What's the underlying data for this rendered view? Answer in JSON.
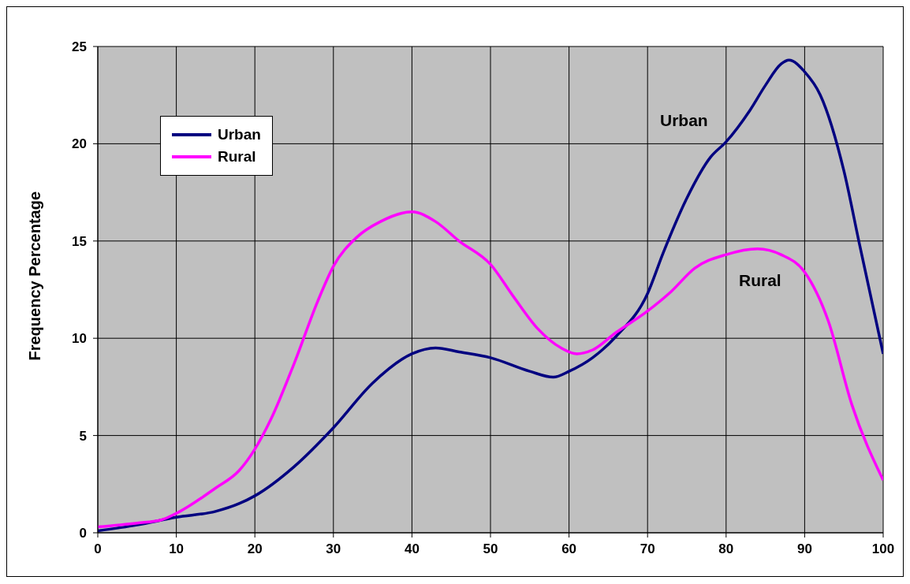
{
  "chart_data": {
    "type": "line",
    "ylabel": "Frequency Percentage",
    "xlim": [
      0,
      100
    ],
    "xticks": [
      0,
      10,
      20,
      30,
      40,
      50,
      60,
      70,
      80,
      90,
      100
    ],
    "ylim": [
      0,
      25
    ],
    "yticks": [
      0,
      5,
      10,
      15,
      20,
      25
    ],
    "grid": true,
    "legend": "top left",
    "marker": "none",
    "line_style": "solid",
    "series": [
      {
        "name": "Urban",
        "color": "#000080",
        "x": [
          0,
          5,
          10,
          15,
          18,
          20,
          25,
          30,
          35,
          40,
          43,
          46,
          50,
          55,
          58,
          60,
          63,
          66,
          70,
          72,
          75,
          78,
          80,
          83,
          85,
          87,
          88,
          90,
          92,
          95,
          97,
          100
        ],
        "values": [
          0.1,
          0.4,
          0.8,
          1.1,
          1.5,
          1.9,
          3.4,
          5.4,
          7.7,
          9.2,
          9.5,
          9.3,
          9.0,
          8.3,
          8.0,
          8.3,
          9.0,
          10.1,
          12.3,
          14.4,
          17.2,
          19.3,
          20.1,
          21.7,
          23.0,
          24.1,
          24.3,
          23.7,
          22.5,
          18.6,
          14.8,
          9.2
        ]
      },
      {
        "name": "Rural",
        "color": "#ff00ff",
        "x": [
          0,
          5,
          8,
          10,
          15,
          18,
          20,
          22,
          25,
          28,
          30,
          33,
          36,
          40,
          43,
          46,
          50,
          53,
          56,
          59,
          61,
          63,
          66,
          70,
          73,
          76,
          80,
          84,
          87,
          90,
          93,
          96,
          100
        ],
        "values": [
          0.3,
          0.5,
          0.65,
          1.0,
          2.3,
          3.2,
          4.3,
          5.8,
          8.7,
          11.9,
          13.7,
          15.2,
          16.0,
          16.5,
          16.0,
          15.0,
          13.8,
          12.1,
          10.5,
          9.5,
          9.2,
          9.4,
          10.3,
          11.4,
          12.4,
          13.6,
          14.3,
          14.6,
          14.3,
          13.4,
          10.9,
          6.6,
          2.7
        ]
      }
    ],
    "annotations": [
      "Urban",
      "Rural"
    ]
  }
}
